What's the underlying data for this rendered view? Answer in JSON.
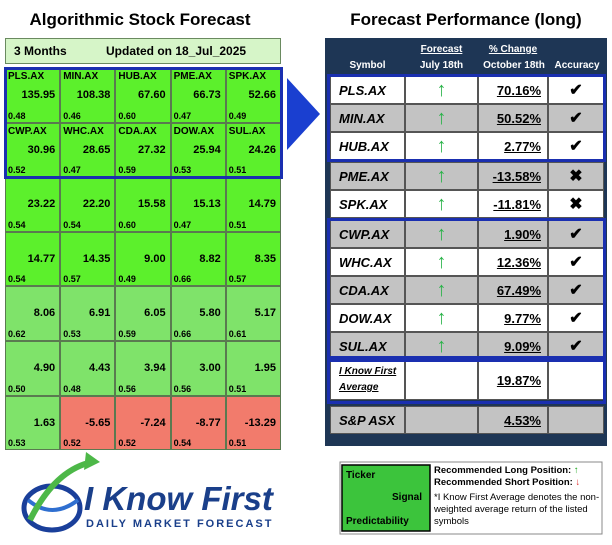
{
  "left": {
    "title": "Algorithmic Stock Forecast",
    "period": "3 Months",
    "updated": "Updated on 18_Jul_2025",
    "rows": [
      [
        {
          "ticker": "PLS.AX",
          "value": "135.95",
          "predictability": "0.48"
        },
        {
          "ticker": "MIN.AX",
          "value": "108.38",
          "predictability": "0.46"
        },
        {
          "ticker": "HUB.AX",
          "value": "67.60",
          "predictability": "0.60"
        },
        {
          "ticker": "PME.AX",
          "value": "66.73",
          "predictability": "0.47"
        },
        {
          "ticker": "SPK.AX",
          "value": "52.66",
          "predictability": "0.49"
        }
      ],
      [
        {
          "ticker": "CWP.AX",
          "value": "30.96",
          "predictability": "0.52"
        },
        {
          "ticker": "WHC.AX",
          "value": "28.65",
          "predictability": "0.47"
        },
        {
          "ticker": "CDA.AX",
          "value": "27.32",
          "predictability": "0.59"
        },
        {
          "ticker": "DOW.AX",
          "value": "25.94",
          "predictability": "0.53"
        },
        {
          "ticker": "SUL.AX",
          "value": "24.26",
          "predictability": "0.51"
        }
      ],
      [
        {
          "value": "23.22",
          "predictability": "0.54"
        },
        {
          "value": "22.20",
          "predictability": "0.54"
        },
        {
          "value": "15.58",
          "predictability": "0.60"
        },
        {
          "value": "15.13",
          "predictability": "0.47"
        },
        {
          "value": "14.79",
          "predictability": "0.51"
        }
      ],
      [
        {
          "value": "14.77",
          "predictability": "0.54"
        },
        {
          "value": "14.35",
          "predictability": "0.57"
        },
        {
          "value": "9.00",
          "predictability": "0.49"
        },
        {
          "value": "8.82",
          "predictability": "0.66"
        },
        {
          "value": "8.35",
          "predictability": "0.57"
        }
      ],
      [
        {
          "value": "8.06",
          "predictability": "0.62"
        },
        {
          "value": "6.91",
          "predictability": "0.53"
        },
        {
          "value": "6.05",
          "predictability": "0.59"
        },
        {
          "value": "5.80",
          "predictability": "0.66"
        },
        {
          "value": "5.17",
          "predictability": "0.61"
        }
      ],
      [
        {
          "value": "4.90",
          "predictability": "0.50"
        },
        {
          "value": "4.43",
          "predictability": "0.48"
        },
        {
          "value": "3.94",
          "predictability": "0.56"
        },
        {
          "value": "3.00",
          "predictability": "0.56"
        },
        {
          "value": "1.95",
          "predictability": "0.51"
        }
      ],
      [
        {
          "value": "1.63",
          "predictability": "0.53"
        },
        {
          "value": "-5.65",
          "predictability": "0.52"
        },
        {
          "value": "-7.24",
          "predictability": "0.52"
        },
        {
          "value": "-8.77",
          "predictability": "0.54"
        },
        {
          "value": "-13.29",
          "predictability": "0.51"
        }
      ]
    ]
  },
  "right": {
    "title": "Forecast Performance (long)",
    "headers": {
      "symbol": "Symbol",
      "forecast": "Forecast",
      "forecast_date": "July 18th",
      "change": "% Change",
      "change_date": "October 18th",
      "accuracy": "Accuracy"
    },
    "rows": [
      {
        "symbol": "PLS.AX",
        "change": "70.16%",
        "accuracy": "✔"
      },
      {
        "symbol": "MIN.AX",
        "change": "50.52%",
        "accuracy": "✔"
      },
      {
        "symbol": "HUB.AX",
        "change": "2.77%",
        "accuracy": "✔"
      },
      {
        "symbol": "PME.AX",
        "change": "-13.58%",
        "accuracy": "✖"
      },
      {
        "symbol": "SPK.AX",
        "change": "-11.81%",
        "accuracy": "✖"
      },
      {
        "symbol": "CWP.AX",
        "change": "1.90%",
        "accuracy": "✔"
      },
      {
        "symbol": "WHC.AX",
        "change": "12.36%",
        "accuracy": "✔"
      },
      {
        "symbol": "CDA.AX",
        "change": "67.49%",
        "accuracy": "✔"
      },
      {
        "symbol": "DOW.AX",
        "change": "9.77%",
        "accuracy": "✔"
      },
      {
        "symbol": "SUL.AX",
        "change": "9.09%",
        "accuracy": "✔"
      }
    ],
    "average": {
      "label": "I Know First Average",
      "change": "19.87%"
    },
    "benchmark": {
      "label": "S&P ASX",
      "change": "4.53%"
    }
  },
  "legend": {
    "ticker": "Ticker",
    "signal": "Signal",
    "predictability": "Predictability",
    "long": "Recommended Long Position:",
    "short": "Recommended Short Position:",
    "note": "*I Know First Average denotes the non-weighted average return of the listed symbols"
  },
  "logo": {
    "name": "I Know First",
    "tagline": "DAILY MARKET FORECAST"
  }
}
